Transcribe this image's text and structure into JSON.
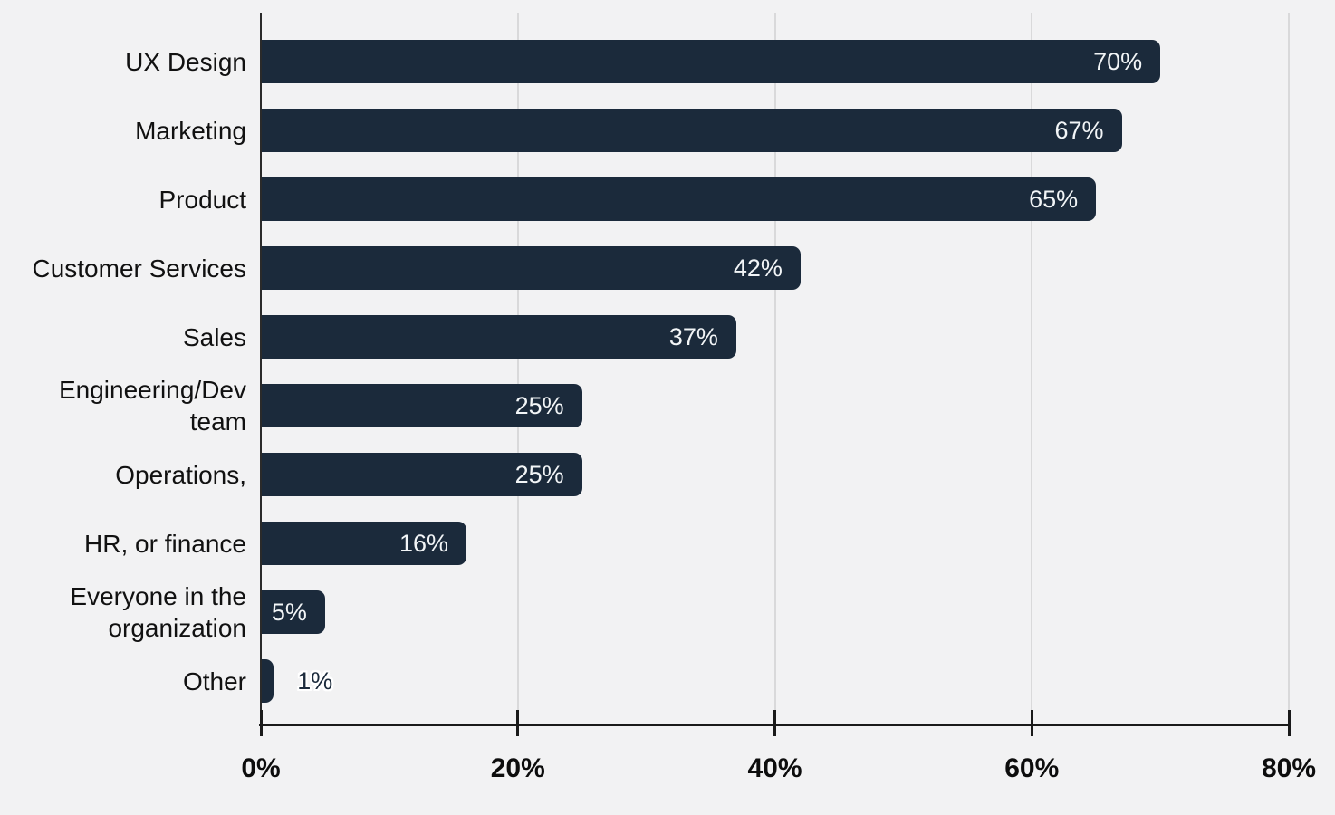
{
  "chart_data": {
    "type": "bar",
    "orientation": "horizontal",
    "title": "",
    "xlabel": "",
    "ylabel": "",
    "xlim": [
      0,
      80
    ],
    "grid": "vertical-gridlines at 20,40,60,80",
    "legend": "none",
    "categories": [
      "UX Design",
      "Marketing",
      "Product",
      "Customer Services",
      "Sales",
      "Engineering/Dev team",
      "Operations,",
      "HR, or finance",
      "Everyone in the organization",
      "Other"
    ],
    "values": [
      70,
      67,
      65,
      42,
      37,
      25,
      25,
      16,
      5,
      1
    ],
    "value_labels": [
      "70%",
      "67%",
      "65%",
      "42%",
      "37%",
      "25%",
      "25%",
      "16%",
      "5%",
      "1%"
    ],
    "x_tick_values": [
      0,
      20,
      40,
      60,
      80
    ],
    "x_tick_labels": [
      "0%",
      "20%",
      "40%",
      "60%",
      "80%"
    ],
    "colors": {
      "bar": "#1b2a3b",
      "background": "#f2f2f3",
      "gridline": "#d9d9da",
      "axis": "#1a1a1a",
      "value_label_inside": "#f2f5f7",
      "value_label_outside": "#1b2a3b",
      "category_label": "#111111"
    }
  }
}
